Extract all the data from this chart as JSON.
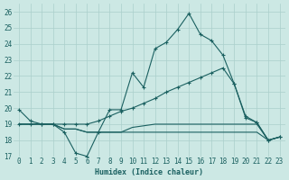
{
  "xlabel": "Humidex (Indice chaleur)",
  "bg_color": "#cce8e4",
  "grid_color": "#aacfcb",
  "line_color": "#1a6060",
  "xlim": [
    -0.5,
    23.5
  ],
  "ylim": [
    17,
    26.5
  ],
  "yticks": [
    17,
    18,
    19,
    20,
    21,
    22,
    23,
    24,
    25,
    26
  ],
  "xticks": [
    0,
    1,
    2,
    3,
    4,
    5,
    6,
    7,
    8,
    9,
    10,
    11,
    12,
    13,
    14,
    15,
    16,
    17,
    18,
    19,
    20,
    21,
    22,
    23
  ],
  "series1_y": [
    19.9,
    19.2,
    19.0,
    19.0,
    18.5,
    17.2,
    17.0,
    18.5,
    19.9,
    19.9,
    22.2,
    21.3,
    23.7,
    24.1,
    24.9,
    25.9,
    24.6,
    24.2,
    23.3,
    21.5,
    19.4,
    19.1,
    18.0,
    18.2
  ],
  "series2_y": [
    19.0,
    19.0,
    19.0,
    19.0,
    19.0,
    19.0,
    19.0,
    19.2,
    19.5,
    19.8,
    20.0,
    20.3,
    20.6,
    21.0,
    21.3,
    21.6,
    21.9,
    22.2,
    22.5,
    21.5,
    19.5,
    19.1,
    18.0,
    18.2
  ],
  "series3_y": [
    19.0,
    19.0,
    19.0,
    19.0,
    18.7,
    18.7,
    18.5,
    18.5,
    18.5,
    18.5,
    18.5,
    18.5,
    18.5,
    18.5,
    18.5,
    18.5,
    18.5,
    18.5,
    18.5,
    18.5,
    18.5,
    18.5,
    18.0,
    18.2
  ],
  "series4_y": [
    19.0,
    19.0,
    19.0,
    19.0,
    18.7,
    18.7,
    18.5,
    18.5,
    18.5,
    18.5,
    18.8,
    18.9,
    19.0,
    19.0,
    19.0,
    19.0,
    19.0,
    19.0,
    19.0,
    19.0,
    19.0,
    19.0,
    18.0,
    18.2
  ]
}
